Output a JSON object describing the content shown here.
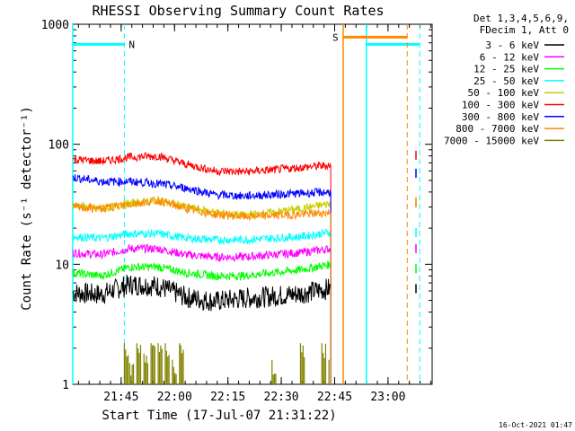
{
  "chart_data": {
    "type": "line",
    "title": "RHESSI Observing Summary Count Rates",
    "xlabel": "Start Time (17-Jul-07 21:31:22)",
    "ylabel": "Count Rate (s⁻¹ detector⁻¹)",
    "x_unit": "minutes since 21:31:22",
    "xlim": [
      0,
      101
    ],
    "ylim": [
      1,
      1000
    ],
    "yscale": "log",
    "grid": false,
    "legend_position": "top-right",
    "x_ticks": [
      {
        "label": "21:45",
        "value": 13.6
      },
      {
        "label": "22:00",
        "value": 28.6
      },
      {
        "label": "22:15",
        "value": 43.6
      },
      {
        "label": "22:30",
        "value": 58.6
      },
      {
        "label": "22:45",
        "value": 73.6
      },
      {
        "label": "23:00",
        "value": 88.6
      }
    ],
    "y_ticks": [
      {
        "label": "1",
        "value": 1
      },
      {
        "label": "10",
        "value": 10
      },
      {
        "label": "100",
        "value": 100
      },
      {
        "label": "1000",
        "value": 1000
      }
    ],
    "info_lines": [
      "Det 1,3,4,5,6,9,",
      "FDecim 1, Att 0"
    ],
    "timestamp": "16-Oct-2021 01:47",
    "series": [
      {
        "name": "3 - 6 keV",
        "color": "#000000",
        "x": [
          0,
          8,
          16,
          24,
          32,
          40,
          48,
          56,
          64,
          72.5
        ],
        "y": [
          5.8,
          5.6,
          6.8,
          6.6,
          5.3,
          4.9,
          5.2,
          5.4,
          5.7,
          6.3
        ]
      },
      {
        "name": "6 - 12 keV",
        "color": "#ff00ff",
        "x": [
          0,
          8,
          16,
          24,
          32,
          40,
          48,
          56,
          64,
          72.5
        ],
        "y": [
          12.5,
          12,
          13.5,
          13.5,
          12,
          11.5,
          11.5,
          12,
          12.5,
          13.5
        ]
      },
      {
        "name": "12 - 25 keV",
        "color": "#00ff00",
        "x": [
          0,
          8,
          16,
          24,
          32,
          40,
          48,
          56,
          64,
          72.5
        ],
        "y": [
          8.5,
          8,
          9.5,
          9.5,
          8.5,
          8,
          8,
          8.5,
          9,
          10
        ]
      },
      {
        "name": "25 - 50 keV",
        "color": "#00ffff",
        "x": [
          0,
          8,
          16,
          24,
          32,
          40,
          48,
          56,
          64,
          72.5
        ],
        "y": [
          17,
          16.5,
          18,
          18,
          16.5,
          16,
          16,
          16.5,
          17,
          18.5
        ]
      },
      {
        "name": "50 - 100 keV",
        "color": "#cccc00",
        "x": [
          0,
          8,
          16,
          24,
          32,
          40,
          48,
          56,
          64,
          72.5
        ],
        "y": [
          31,
          29,
          32,
          34,
          30,
          27,
          25.5,
          27,
          29,
          32
        ]
      },
      {
        "name": "100 - 300 keV",
        "color": "#ff0000",
        "x": [
          0,
          8,
          16,
          24,
          32,
          40,
          48,
          56,
          64,
          72.5
        ],
        "y": [
          75,
          72,
          78,
          80,
          68,
          60,
          59,
          61,
          64,
          67
        ]
      },
      {
        "name": "300 - 800 keV",
        "color": "#0000ff",
        "x": [
          0,
          8,
          16,
          24,
          32,
          40,
          48,
          56,
          64,
          72.5
        ],
        "y": [
          53,
          49,
          49,
          47,
          43,
          38,
          37,
          38,
          39,
          40
        ]
      },
      {
        "name": "800 - 7000 keV",
        "color": "#ff8800",
        "x": [
          0,
          8,
          16,
          24,
          32,
          40,
          48,
          56,
          64,
          72.5
        ],
        "y": [
          30,
          29,
          32,
          34,
          29,
          26,
          25,
          25.5,
          26,
          27
        ]
      },
      {
        "name": "7000 - 15000 keV",
        "color": "#808000",
        "x": [
          14.5,
          16,
          18,
          20,
          22,
          24,
          26,
          28,
          30,
          56,
          64,
          70,
          72
        ],
        "y": [
          2.2,
          1.5,
          2.2,
          1.8,
          2.2,
          2.2,
          2.2,
          1.6,
          2.2,
          1.6,
          2.2,
          2.2,
          1.6
        ]
      }
    ],
    "markers": {
      "night": [
        {
          "label": "N",
          "solid_start": 0,
          "solid_end": 14.5,
          "dashed_end": 14.5,
          "level": 680
        },
        {
          "label": "",
          "solid_start": 82.5,
          "solid_end": 97.5,
          "dashed_end": 97.5,
          "level": 680
        }
      ],
      "saa": [
        {
          "label": "S",
          "solid_start": 76,
          "solid_end": 76,
          "dashed_end": 94,
          "level": 780
        }
      ]
    }
  }
}
